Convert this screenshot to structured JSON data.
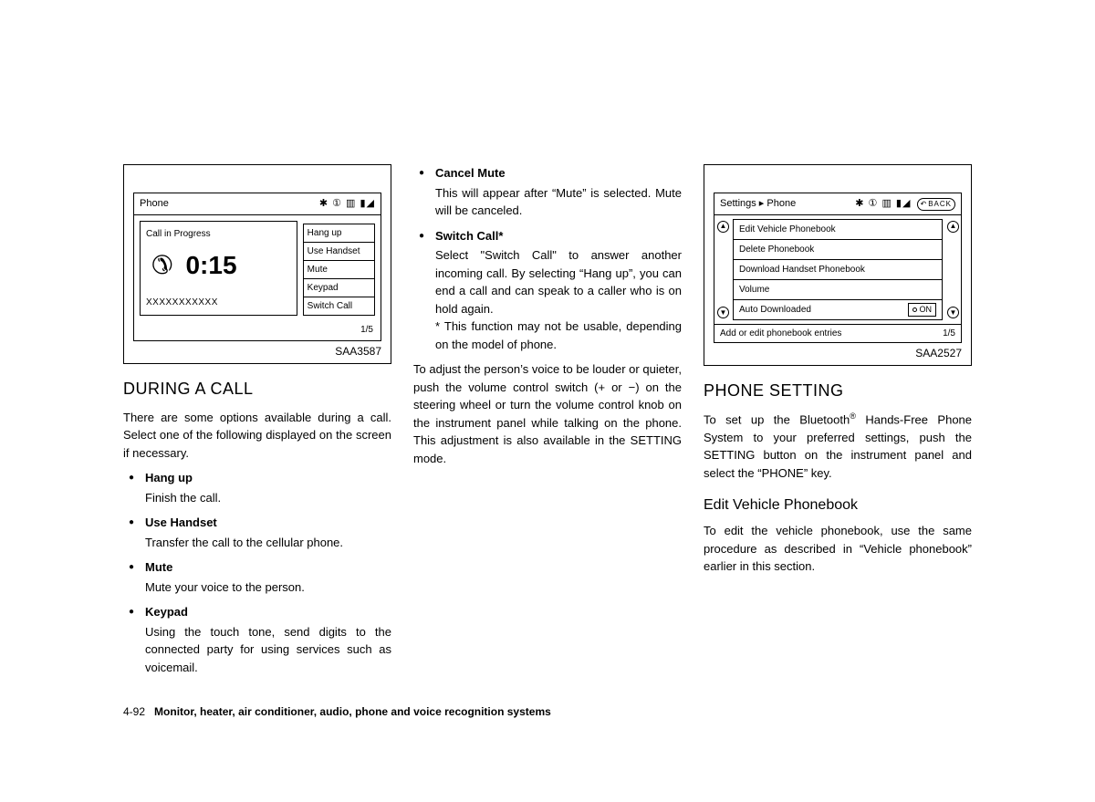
{
  "fig1": {
    "id": "SAA3587",
    "header_title": "Phone",
    "header_icons": "✱ ① ▥ ▮◢",
    "call_in_progress": "Call in Progress",
    "timer": "0:15",
    "xrow": "XXXXXXXXXXX",
    "menu": [
      "Hang up",
      "Use Handset",
      "Mute",
      "Keypad",
      "Switch Call"
    ],
    "pagenum": "1/5"
  },
  "fig2": {
    "id": "SAA2527",
    "header_title": "Settings ▸ Phone",
    "header_icons": "✱ ① ▥ ▮◢",
    "back_label": "BACK",
    "rows": [
      {
        "label": "Edit Vehicle Phonebook"
      },
      {
        "label": "Delete Phonebook"
      },
      {
        "label": "Download Handset Phonebook"
      },
      {
        "label": "Volume"
      },
      {
        "label": "Auto Downloaded",
        "toggle": "ON"
      }
    ],
    "pagenum": "1/5",
    "footer_hint": "Add or edit phonebook entries",
    "side_up": "▲",
    "side_down": "▼"
  },
  "col1": {
    "h1": "DURING A CALL",
    "p1": "There are some options available during a call. Select one of the following displayed on the screen if necessary.",
    "items": [
      {
        "t": "Hang up",
        "d": "Finish the call."
      },
      {
        "t": "Use Handset",
        "d": "Transfer the call to the cellular phone."
      },
      {
        "t": "Mute",
        "d": "Mute your voice to the person."
      },
      {
        "t": "Keypad",
        "d": "Using the touch tone, send digits to the connected party for using services such as voicemail."
      }
    ]
  },
  "col2": {
    "items": [
      {
        "t": "Cancel Mute",
        "d": "This will appear after “Mute” is selected. Mute will be canceled."
      },
      {
        "t": "Switch Call*",
        "d": "Select \"Switch Call\" to answer another incoming call. By selecting “Hang up”, you can end a call and can speak to a caller who is on hold again.",
        "note": "* This function may not be usable, depending on the model of phone."
      }
    ],
    "para": "To adjust the person’s voice to be louder or quieter, push the volume control switch (+ or −) on the steering wheel or turn the volume control knob on the instrument panel while talking on the phone. This adjustment is also available in the SETTING mode."
  },
  "col3": {
    "h1": "PHONE SETTING",
    "p1_a": "To set up the Bluetooth",
    "p1_b": " Hands-Free Phone System to your preferred settings, push the SETTING button on the instrument panel and select the “PHONE” key.",
    "h2": "Edit Vehicle Phonebook",
    "p2": "To edit the vehicle phonebook, use the same procedure as described in “Vehicle phonebook” earlier in this section."
  },
  "footer": {
    "page": "4-92",
    "title": "Monitor, heater, air conditioner, audio, phone and voice recognition systems"
  }
}
